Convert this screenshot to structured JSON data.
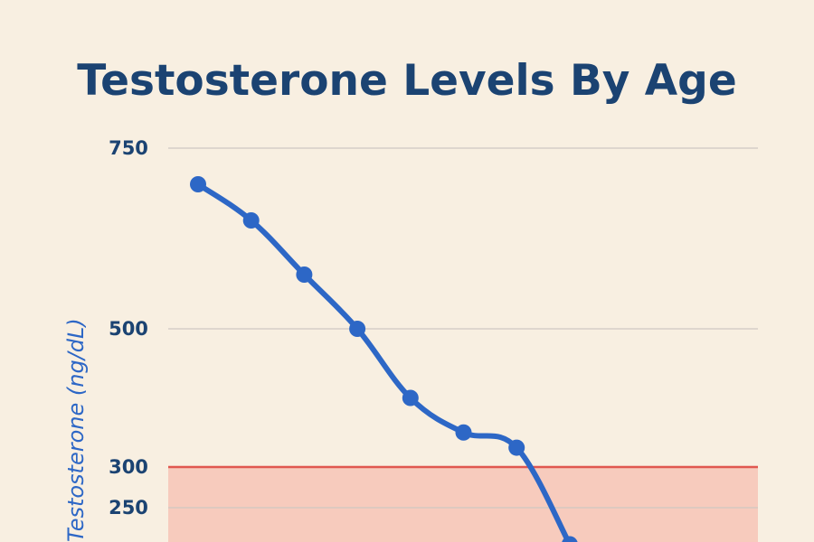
{
  "chart_data": {
    "type": "line",
    "title": "Testosterone Levels By Age",
    "ylabel": "Testosterone (ng/dL)",
    "yticks": [
      750,
      500,
      300,
      250
    ],
    "threshold": 300,
    "ylim_visible": [
      200,
      750
    ],
    "series": [
      {
        "values": [
          700,
          650,
          575,
          500,
          400,
          350,
          328,
          204
        ]
      }
    ],
    "colors": {
      "line": "#2d67c6",
      "threshold_line": "#e0574f",
      "low_zone": "#f7cbbd",
      "grid": "#cfc8c2",
      "title": "#1b4372",
      "background": "#f8efe1"
    }
  }
}
